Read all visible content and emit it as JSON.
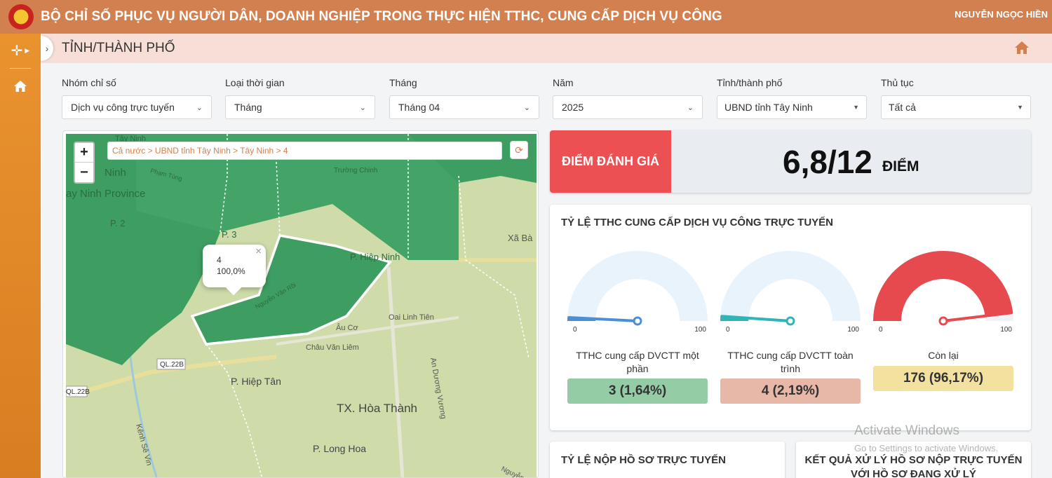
{
  "header": {
    "title": "BỘ CHỈ SỐ PHỤC VỤ NGƯỜI DÂN, DOANH NGHIỆP TRONG THỰC HIỆN TTHC, CUNG CẤP DỊCH VỤ CÔNG",
    "user": "NGUYỄN NGỌC HIỀN",
    "logo_icon": "national-emblem",
    "color": "#d2804f"
  },
  "rail": {
    "menu_icon": "move-arrows-icon",
    "home_icon": "home-icon",
    "color": "#e9932f"
  },
  "subheader": {
    "title": "TỈNH/THÀNH PHỐ",
    "home_icon": "home-icon"
  },
  "filters": [
    {
      "label": "Nhóm chỉ số",
      "value": "Dịch vụ công trực tuyến"
    },
    {
      "label": "Loại thời gian",
      "value": "Tháng"
    },
    {
      "label": "Tháng",
      "value": "Tháng 04"
    },
    {
      "label": "Năm",
      "value": "2025"
    },
    {
      "label": "Tỉnh/thành phố",
      "value": "UBND tỉnh Tây Ninh"
    },
    {
      "label": "Thủ tục",
      "value": "Tất cả"
    }
  ],
  "map": {
    "breadcrumb": "Cả nước > UBND tỉnh Tây Ninh > Tây Ninh > 4",
    "zoom_in": "+",
    "zoom_out": "−",
    "popup": {
      "name": "4",
      "value": "100,0%",
      "close": "×"
    },
    "labels": {
      "province": "ay Ninh Province",
      "ninh": "Ninh",
      "p2": "P. 2",
      "p3": "P. 3",
      "xa_ba": "Xã Bà",
      "p_ninh": "P. Hiệp Ninh",
      "oai_linh_tien": "Oai Linh Tiên",
      "au_co": "Âu Cơ",
      "chau_van_liem": "Châu Văn Liêm",
      "ql22b_1": "QL.22B",
      "ql22b_2": "QL.22B",
      "p_hiep_tan": "P. Hiệp Tân",
      "tx_hoa_thanh": "TX. Hòa Thành",
      "p_long_hoa": "P. Long Hoa",
      "an_duong_vuong": "An Dương Vương",
      "kenh_se_vin": "Kênh Sê Vin",
      "truong_chinh": "Trường Chinh",
      "nguyen_van_roi": "Nguyễn Văn Rồi",
      "pham_tung": "Phạm Tùng",
      "tay_ninh_top": "Tây Ninh",
      "nguyen": "Nguyễn"
    },
    "colors": {
      "base": "#cfdcaa",
      "region": "#3e9e62"
    }
  },
  "score": {
    "label": "ĐIỂM ĐÁNH GIÁ",
    "value": "6,8/12",
    "unit": "ĐIỂM",
    "accent": "#ec5052"
  },
  "rate_card": {
    "title": "TỶ LỆ TTHC CUNG CẤP DỊCH VỤ CÔNG TRỰC TUYẾN",
    "gauges": [
      {
        "label": "TTHC cung cấp DVCTT một phần",
        "display": "3 (1,64%)",
        "percent": 1.64,
        "min": "0",
        "max": "100",
        "needle": "#4d8fd6",
        "fill": "#e9f3fb",
        "value_bg": "#93cca5"
      },
      {
        "label": "TTHC cung cấp DVCTT toàn trình",
        "display": "4 (2,19%)",
        "percent": 2.19,
        "min": "0",
        "max": "100",
        "needle": "#2fb5b5",
        "fill": "#e9f3fb",
        "value_bg": "#e7b7a8"
      },
      {
        "label": "Còn lại",
        "display": "176 (96,17%)",
        "percent": 96.17,
        "min": "0",
        "max": "100",
        "needle": "#e64a4f",
        "fill": "#e64a4f",
        "value_bg": "#f3e1a0"
      }
    ]
  },
  "bottom_cards": [
    {
      "title": "TỶ LỆ NỘP HỒ SƠ TRỰC TUYẾN"
    },
    {
      "title_line1": "KẾT QUẢ XỬ LÝ HỒ SƠ NỘP TRỰC TUYẾN",
      "title_line2": "VỚI HỒ SƠ ĐANG XỬ LÝ"
    }
  ],
  "watermark": {
    "line1": "Activate Windows",
    "line2": "Go to Settings to activate Windows."
  }
}
